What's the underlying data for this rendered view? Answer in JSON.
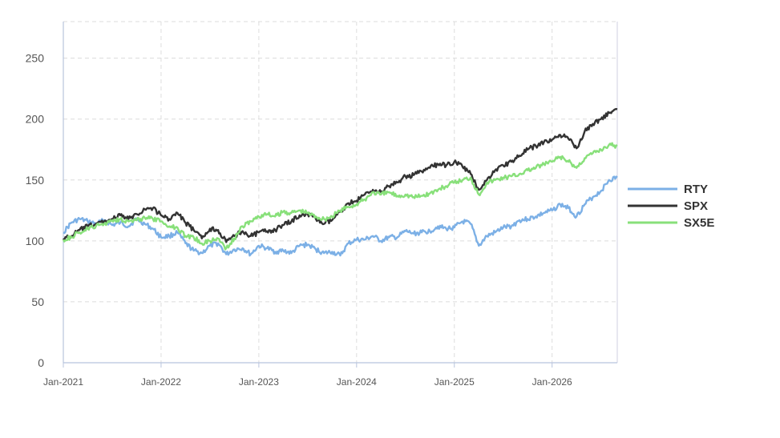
{
  "chart_data": {
    "type": "line",
    "x_axis": {
      "type": "date",
      "start": "2021-01",
      "end": "2026-09",
      "tick_labels": [
        "Jan-2021",
        "Jan-2022",
        "Jan-2023",
        "Jan-2024",
        "Jan-2025",
        "Jan-2026"
      ],
      "tick_dates": [
        "2021-01",
        "2022-01",
        "2023-01",
        "2024-01",
        "2025-01",
        "2026-01"
      ]
    },
    "y_axis": {
      "ylim": [
        0,
        280
      ],
      "ticks": [
        0,
        50,
        100,
        150,
        200,
        250
      ]
    },
    "grid": true,
    "legend": "right",
    "dates": [
      "2021-01",
      "2021-02",
      "2021-03",
      "2021-04",
      "2021-05",
      "2021-06",
      "2021-07",
      "2021-08",
      "2021-09",
      "2021-10",
      "2021-11",
      "2021-12",
      "2022-01",
      "2022-02",
      "2022-03",
      "2022-04",
      "2022-05",
      "2022-06",
      "2022-07",
      "2022-08",
      "2022-09",
      "2022-10",
      "2022-11",
      "2022-12",
      "2023-01",
      "2023-02",
      "2023-03",
      "2023-04",
      "2023-05",
      "2023-06",
      "2023-07",
      "2023-08",
      "2023-09",
      "2023-10",
      "2023-11",
      "2023-12",
      "2024-01",
      "2024-02",
      "2024-03",
      "2024-04",
      "2024-05",
      "2024-06",
      "2024-07",
      "2024-08",
      "2024-09",
      "2024-10",
      "2024-11",
      "2024-12",
      "2025-01",
      "2025-02",
      "2025-03",
      "2025-04",
      "2025-05",
      "2025-06",
      "2025-07",
      "2025-08",
      "2025-09",
      "2025-10",
      "2025-11",
      "2025-12",
      "2026-01",
      "2026-02",
      "2026-03",
      "2026-04",
      "2026-05",
      "2026-06",
      "2026-07",
      "2026-08",
      "2026-09"
    ],
    "series": [
      {
        "name": "RTY",
        "color": "#7cb0e6",
        "values": [
          107,
          115,
          118,
          116,
          114,
          117,
          113,
          115,
          112,
          118,
          114,
          110,
          103,
          104,
          107,
          98,
          92,
          90,
          96,
          98,
          89,
          93,
          94,
          89,
          96,
          94,
          91,
          92,
          90,
          96,
          97,
          93,
          90,
          91,
          88,
          98,
          101,
          101,
          104,
          100,
          103,
          103,
          108,
          106,
          107,
          108,
          112,
          110,
          111,
          116,
          114,
          96,
          104,
          107,
          111,
          112,
          117,
          118,
          120,
          123,
          125,
          130,
          127,
          120,
          130,
          136,
          141,
          150,
          152
        ]
      },
      {
        "name": "SPX",
        "color": "#333333",
        "values": [
          102,
          104,
          109,
          112,
          114,
          116,
          118,
          121,
          118,
          122,
          126,
          127,
          121,
          118,
          123,
          115,
          109,
          102,
          110,
          109,
          99,
          104,
          108,
          104,
          107,
          108,
          109,
          113,
          116,
          121,
          122,
          118,
          114,
          117,
          124,
          131,
          133,
          138,
          142,
          140,
          145,
          148,
          153,
          154,
          157,
          160,
          163,
          162,
          165,
          161,
          155,
          142,
          150,
          158,
          162,
          165,
          170,
          175,
          178,
          181,
          183,
          187,
          184,
          176,
          190,
          196,
          200,
          205,
          208
        ]
      },
      {
        "name": "SX5E",
        "color": "#88e07a",
        "values": [
          101,
          103,
          107,
          110,
          112,
          114,
          117,
          118,
          116,
          117,
          119,
          118,
          116,
          112,
          111,
          104,
          103,
          98,
          100,
          102,
          94,
          102,
          112,
          116,
          120,
          122,
          120,
          124,
          123,
          125,
          123,
          120,
          118,
          120,
          125,
          128,
          130,
          134,
          140,
          138,
          140,
          137,
          138,
          136,
          137,
          139,
          142,
          145,
          148,
          150,
          152,
          138,
          148,
          150,
          152,
          153,
          155,
          158,
          160,
          163,
          165,
          169,
          165,
          160,
          168,
          172,
          175,
          179,
          178
        ]
      }
    ]
  }
}
